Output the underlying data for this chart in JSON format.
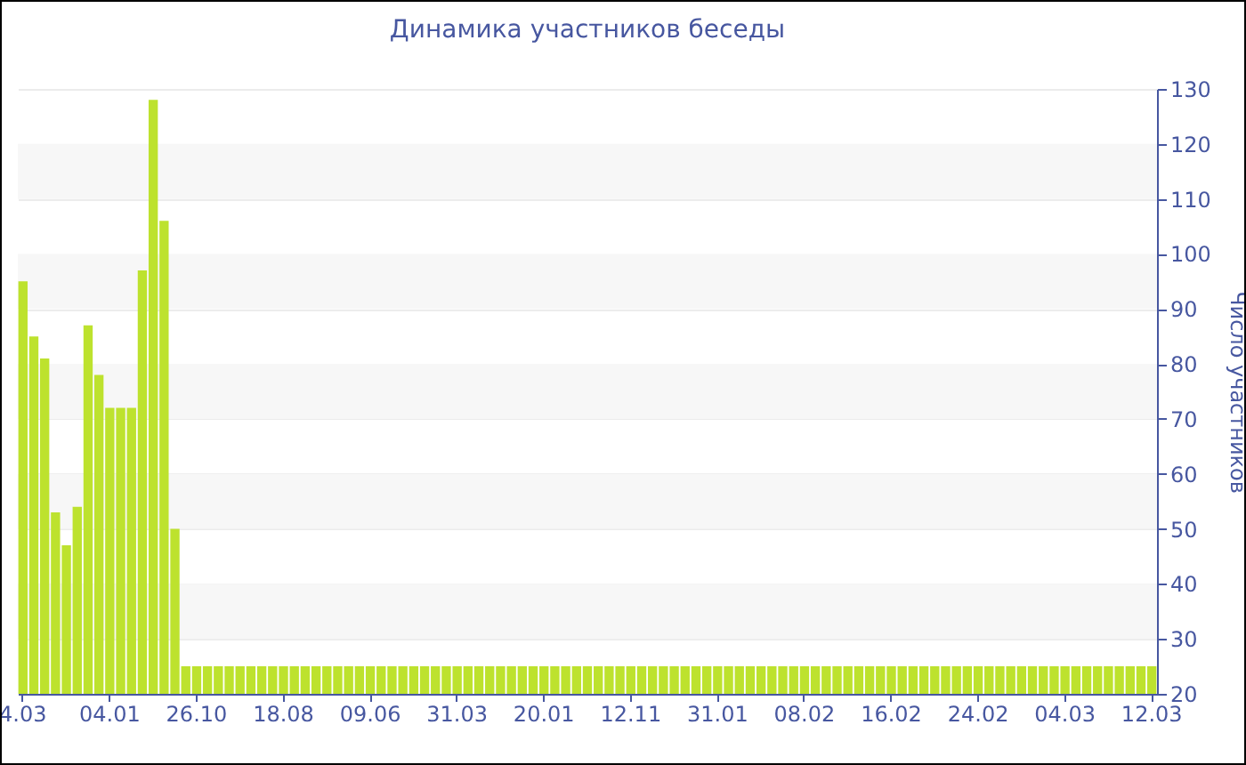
{
  "chart_data": {
    "type": "bar",
    "title": "Динамика участников беседы",
    "ylabel": "Число участников",
    "categories": [
      "4.03",
      null,
      null,
      null,
      null,
      null,
      null,
      null,
      "04.01",
      null,
      null,
      null,
      null,
      null,
      null,
      null,
      "26.10",
      null,
      null,
      null,
      null,
      null,
      null,
      null,
      "18.08",
      null,
      null,
      null,
      null,
      null,
      null,
      null,
      "09.06",
      null,
      null,
      null,
      null,
      null,
      null,
      null,
      "31.03",
      null,
      null,
      null,
      null,
      null,
      null,
      null,
      "20.01",
      null,
      null,
      null,
      null,
      null,
      null,
      null,
      "12.11",
      null,
      null,
      null,
      null,
      null,
      null,
      null,
      "31.01",
      null,
      null,
      null,
      null,
      null,
      null,
      null,
      "08.02",
      null,
      null,
      null,
      null,
      null,
      null,
      null,
      "16.02",
      null,
      null,
      null,
      null,
      null,
      null,
      null,
      "24.02",
      null,
      null,
      null,
      null,
      null,
      null,
      null,
      "04.03",
      null,
      null,
      null,
      null,
      null,
      null,
      null,
      "12.03"
    ],
    "values": [
      95,
      85,
      81,
      53,
      47,
      54,
      87,
      78,
      72,
      72,
      72,
      97,
      128,
      106,
      50,
      25,
      25,
      25,
      25,
      25,
      25,
      25,
      25,
      25,
      25,
      25,
      25,
      25,
      25,
      25,
      25,
      25,
      25,
      25,
      25,
      25,
      25,
      25,
      25,
      25,
      25,
      25,
      25,
      25,
      25,
      25,
      25,
      25,
      25,
      25,
      25,
      25,
      25,
      25,
      25,
      25,
      25,
      25,
      25,
      25,
      25,
      25,
      25,
      25,
      25,
      25,
      25,
      25,
      25,
      25,
      25,
      25,
      25,
      25,
      25,
      25,
      25,
      25,
      25,
      25,
      25,
      25,
      25,
      25,
      25,
      25,
      25,
      25,
      25,
      25,
      25,
      25,
      25,
      25,
      25,
      25,
      25,
      25,
      25,
      25,
      25,
      25,
      25,
      25,
      25
    ],
    "color": "#bde22e",
    "ylim": [
      20,
      130
    ],
    "yticks": [
      20,
      30,
      40,
      50,
      60,
      70,
      80,
      90,
      100,
      110,
      120,
      130
    ],
    "grid": "y"
  }
}
